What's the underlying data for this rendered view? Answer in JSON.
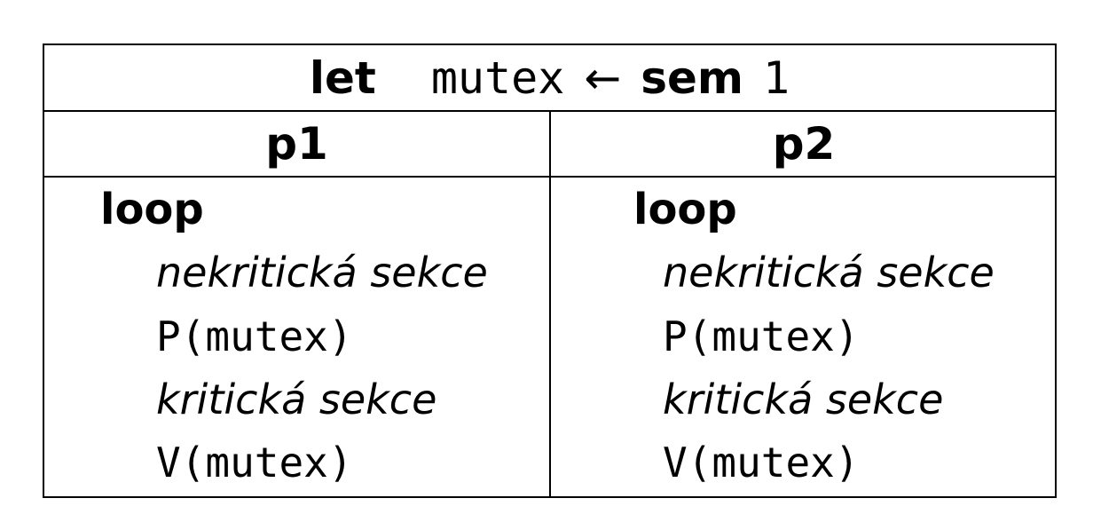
{
  "header": {
    "let": "let",
    "var": "mutex",
    "arrow": "←",
    "sem": "sem",
    "init": "1"
  },
  "columns": [
    {
      "title": "p1",
      "lines": {
        "loop": "loop",
        "noncritical": "nekritická sekce",
        "p_op": "P(mutex)",
        "critical": "kritická sekce",
        "v_op": "V(mutex)"
      }
    },
    {
      "title": "p2",
      "lines": {
        "loop": "loop",
        "noncritical": "nekritická sekce",
        "p_op": "P(mutex)",
        "critical": "kritická sekce",
        "v_op": "V(mutex)"
      }
    }
  ]
}
